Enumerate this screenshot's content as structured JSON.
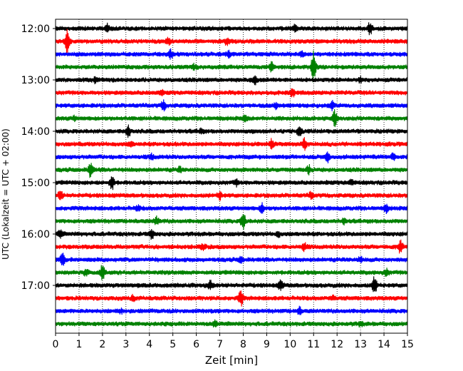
{
  "chart_data": {
    "type": "line",
    "title": "",
    "xlabel": "Zeit  [min]",
    "ylabel": "UTC (Lokalzeit = UTC + 02:00)",
    "xlim": [
      0,
      15
    ],
    "x_ticks": [
      "0",
      "1",
      "2",
      "3",
      "4",
      "5",
      "6",
      "7",
      "8",
      "9",
      "10",
      "11",
      "12",
      "13",
      "14",
      "15"
    ],
    "y_ticks": [
      "12:00",
      "13:00",
      "14:00",
      "15:00",
      "16:00",
      "17:00"
    ],
    "grid": "vertical dotted",
    "trace_colors": [
      "#000000",
      "#ff0000",
      "#0000ff",
      "#008000"
    ],
    "traces": [
      {
        "start": "12:00",
        "events": [
          [
            13.4,
            1.4
          ],
          [
            2.2,
            0.8
          ],
          [
            10.2,
            0.7
          ]
        ]
      },
      {
        "start": "12:15",
        "events": [
          [
            0.5,
            2.6
          ],
          [
            4.8,
            0.6
          ],
          [
            7.3,
            0.7
          ]
        ]
      },
      {
        "start": "12:30",
        "events": [
          [
            4.9,
            0.9
          ],
          [
            7.4,
            0.6
          ],
          [
            10.5,
            0.5
          ]
        ]
      },
      {
        "start": "12:45",
        "events": [
          [
            11.0,
            3.6
          ],
          [
            9.2,
            1.0
          ],
          [
            5.9,
            0.5
          ]
        ]
      },
      {
        "start": "13:00",
        "events": [
          [
            8.5,
            0.8
          ],
          [
            1.7,
            0.5
          ],
          [
            13.0,
            0.5
          ]
        ]
      },
      {
        "start": "13:15",
        "events": [
          [
            10.1,
            0.9
          ],
          [
            4.5,
            0.4
          ]
        ]
      },
      {
        "start": "13:30",
        "events": [
          [
            4.6,
            1.0
          ],
          [
            11.8,
            0.8
          ],
          [
            9.4,
            0.5
          ]
        ]
      },
      {
        "start": "13:45",
        "events": [
          [
            11.9,
            1.7
          ],
          [
            8.1,
            0.7
          ],
          [
            0.8,
            0.4
          ]
        ]
      },
      {
        "start": "14:00",
        "events": [
          [
            3.1,
            1.3
          ],
          [
            10.4,
            1.0
          ],
          [
            6.2,
            0.5
          ]
        ]
      },
      {
        "start": "14:15",
        "events": [
          [
            10.6,
            1.2
          ],
          [
            9.2,
            0.9
          ],
          [
            3.2,
            0.5
          ]
        ]
      },
      {
        "start": "14:30",
        "events": [
          [
            11.6,
            1.2
          ],
          [
            14.4,
            0.8
          ],
          [
            4.1,
            0.5
          ]
        ]
      },
      {
        "start": "14:45",
        "events": [
          [
            1.5,
            1.7
          ],
          [
            10.8,
            0.8
          ],
          [
            5.3,
            0.5
          ]
        ]
      },
      {
        "start": "15:00",
        "events": [
          [
            2.4,
            1.6
          ],
          [
            7.7,
            0.6
          ],
          [
            12.6,
            0.5
          ]
        ]
      },
      {
        "start": "15:15",
        "events": [
          [
            0.2,
            1.0
          ],
          [
            7.0,
            0.8
          ],
          [
            10.9,
            0.6
          ]
        ]
      },
      {
        "start": "15:30",
        "events": [
          [
            8.8,
            1.0
          ],
          [
            14.1,
            0.8
          ],
          [
            3.5,
            0.5
          ]
        ]
      },
      {
        "start": "15:45",
        "events": [
          [
            8.0,
            2.0
          ],
          [
            4.3,
            0.9
          ],
          [
            12.3,
            0.5
          ]
        ]
      },
      {
        "start": "16:00",
        "events": [
          [
            4.1,
            1.0
          ],
          [
            0.2,
            0.8
          ],
          [
            9.5,
            0.5
          ]
        ]
      },
      {
        "start": "16:15",
        "events": [
          [
            14.7,
            1.5
          ],
          [
            10.6,
            0.9
          ],
          [
            6.3,
            0.5
          ]
        ]
      },
      {
        "start": "16:30",
        "events": [
          [
            0.3,
            1.3
          ],
          [
            7.9,
            0.6
          ],
          [
            13.0,
            0.5
          ]
        ]
      },
      {
        "start": "16:45",
        "events": [
          [
            2.0,
            1.6
          ],
          [
            1.3,
            0.7
          ],
          [
            14.1,
            0.7
          ]
        ]
      },
      {
        "start": "17:00",
        "events": [
          [
            13.6,
            2.0
          ],
          [
            9.6,
            1.1
          ],
          [
            6.6,
            0.9
          ]
        ]
      },
      {
        "start": "17:15",
        "events": [
          [
            7.9,
            1.7
          ],
          [
            3.3,
            0.5
          ],
          [
            11.8,
            0.4
          ]
        ]
      },
      {
        "start": "17:30",
        "events": [
          [
            10.4,
            0.7
          ],
          [
            2.8,
            0.4
          ]
        ]
      },
      {
        "start": "17:45",
        "events": [
          [
            6.8,
            0.7
          ],
          [
            13.0,
            0.4
          ]
        ]
      }
    ]
  }
}
